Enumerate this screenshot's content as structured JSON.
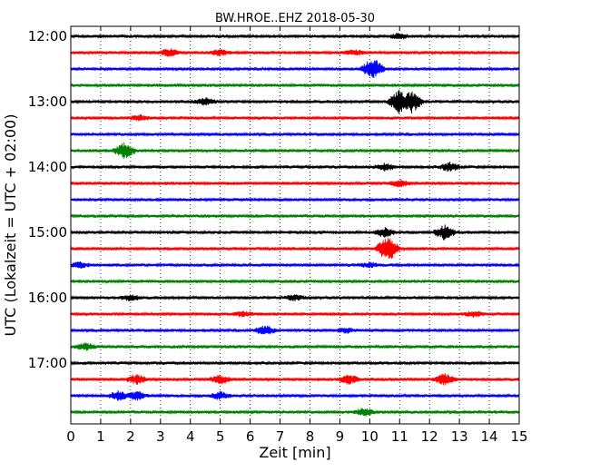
{
  "chart_data": {
    "type": "line",
    "title": "BW.HROE..EHZ 2018-05-30",
    "xlabel": "Zeit  [min]",
    "ylabel": "UTC (Lokalzeit = UTC + 02:00)",
    "xlim": [
      0,
      15
    ],
    "x_ticks": [
      "0",
      "1",
      "2",
      "3",
      "4",
      "5",
      "6",
      "7",
      "8",
      "9",
      "10",
      "11",
      "12",
      "13",
      "14",
      "15"
    ],
    "y_ticks": [
      "12:00",
      "13:00",
      "14:00",
      "15:00",
      "16:00",
      "17:00"
    ],
    "grid": true,
    "colors": [
      "#000000",
      "#ff0000",
      "#0000ff",
      "#008000"
    ],
    "traces": [
      {
        "start": "12:00",
        "color": "#000000",
        "events": [
          [
            11.0,
            3
          ]
        ]
      },
      {
        "start": "12:15",
        "color": "#ff0000",
        "events": [
          [
            3.3,
            4
          ],
          [
            5.0,
            3
          ],
          [
            9.5,
            3
          ]
        ]
      },
      {
        "start": "12:30",
        "color": "#0000ff",
        "events": [
          [
            10.1,
            12
          ]
        ]
      },
      {
        "start": "12:45",
        "color": "#008000",
        "events": []
      },
      {
        "start": "13:00",
        "color": "#000000",
        "events": [
          [
            4.5,
            4
          ],
          [
            11.0,
            14
          ],
          [
            11.4,
            12
          ]
        ]
      },
      {
        "start": "13:15",
        "color": "#ff0000",
        "events": [
          [
            2.3,
            3
          ]
        ]
      },
      {
        "start": "13:30",
        "color": "#0000ff",
        "events": []
      },
      {
        "start": "13:45",
        "color": "#008000",
        "events": [
          [
            1.8,
            9
          ]
        ]
      },
      {
        "start": "14:00",
        "color": "#000000",
        "events": [
          [
            10.5,
            4
          ],
          [
            12.7,
            5
          ]
        ]
      },
      {
        "start": "14:15",
        "color": "#ff0000",
        "events": [
          [
            11.0,
            4
          ]
        ]
      },
      {
        "start": "14:30",
        "color": "#0000ff",
        "events": []
      },
      {
        "start": "14:45",
        "color": "#008000",
        "events": []
      },
      {
        "start": "15:00",
        "color": "#000000",
        "events": [
          [
            10.5,
            5
          ],
          [
            12.5,
            8
          ]
        ]
      },
      {
        "start": "15:15",
        "color": "#ff0000",
        "events": [
          [
            10.6,
            14
          ]
        ]
      },
      {
        "start": "15:30",
        "color": "#0000ff",
        "events": [
          [
            0.3,
            3
          ],
          [
            10.0,
            3
          ]
        ]
      },
      {
        "start": "15:45",
        "color": "#008000",
        "events": []
      },
      {
        "start": "16:00",
        "color": "#000000",
        "events": [
          [
            2.0,
            3
          ],
          [
            7.5,
            3
          ]
        ]
      },
      {
        "start": "16:15",
        "color": "#ff0000",
        "events": [
          [
            5.8,
            3
          ],
          [
            13.5,
            3
          ]
        ]
      },
      {
        "start": "16:30",
        "color": "#0000ff",
        "events": [
          [
            6.5,
            5
          ],
          [
            9.2,
            3
          ]
        ]
      },
      {
        "start": "16:45",
        "color": "#008000",
        "events": [
          [
            0.5,
            4
          ]
        ]
      },
      {
        "start": "17:00",
        "color": "#000000",
        "events": []
      },
      {
        "start": "17:15",
        "color": "#ff0000",
        "events": [
          [
            2.2,
            5
          ],
          [
            5.0,
            5
          ],
          [
            9.3,
            5
          ],
          [
            12.5,
            6
          ]
        ]
      },
      {
        "start": "17:30",
        "color": "#0000ff",
        "events": [
          [
            1.6,
            5
          ],
          [
            2.2,
            5
          ],
          [
            5.0,
            4
          ]
        ]
      },
      {
        "start": "17:45",
        "color": "#008000",
        "events": [
          [
            9.8,
            4
          ]
        ]
      }
    ]
  }
}
